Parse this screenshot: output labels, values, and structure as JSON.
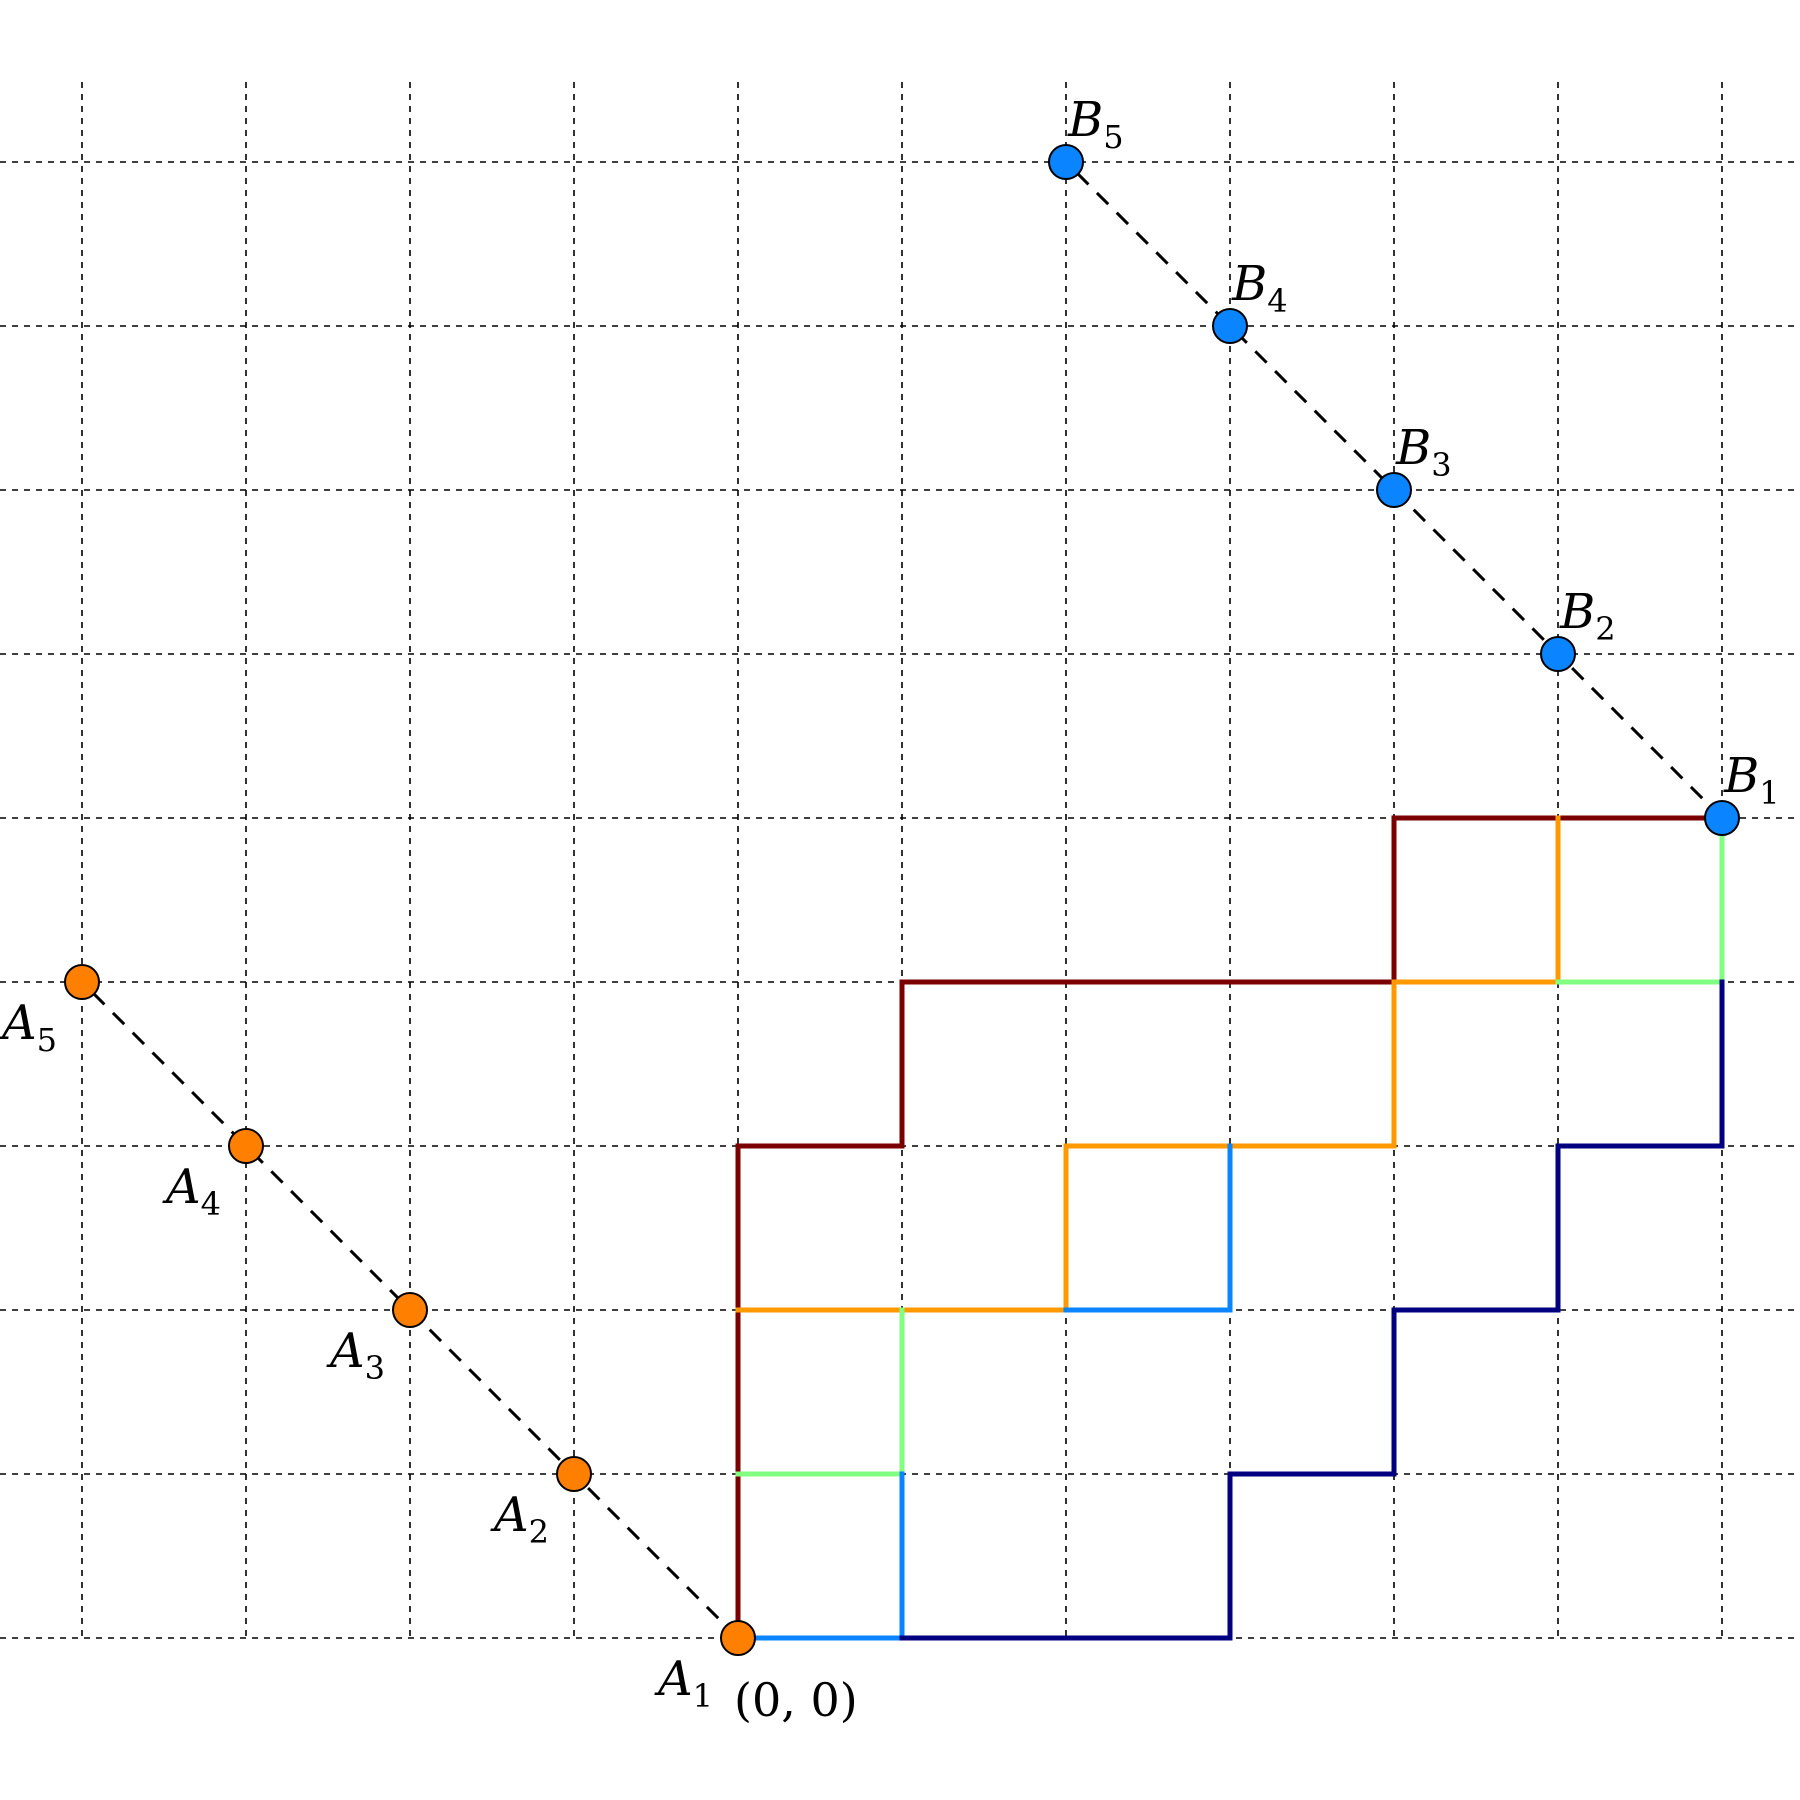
{
  "grid": {
    "x_min": -4,
    "x_max": 6,
    "y_min": 0,
    "y_max": 9,
    "line_color": "#000000"
  },
  "diagonals": [
    {
      "name": "a-diagonal",
      "from": [
        0,
        0
      ],
      "to": [
        -4,
        4
      ]
    },
    {
      "name": "b-diagonal",
      "from": [
        6,
        5
      ],
      "to": [
        2,
        9
      ]
    }
  ],
  "points_a": {
    "color": "#ff8000",
    "items": [
      {
        "letter": "A",
        "index": "1",
        "x": 0,
        "y": 0
      },
      {
        "letter": "A",
        "index": "2",
        "x": -1,
        "y": 1
      },
      {
        "letter": "A",
        "index": "3",
        "x": -2,
        "y": 2
      },
      {
        "letter": "A",
        "index": "4",
        "x": -3,
        "y": 3
      },
      {
        "letter": "A",
        "index": "5",
        "x": -4,
        "y": 4
      }
    ]
  },
  "points_b": {
    "color": "#0a84ff",
    "items": [
      {
        "letter": "B",
        "index": "1",
        "x": 6,
        "y": 5
      },
      {
        "letter": "B",
        "index": "2",
        "x": 5,
        "y": 6
      },
      {
        "letter": "B",
        "index": "3",
        "x": 4,
        "y": 7
      },
      {
        "letter": "B",
        "index": "4",
        "x": 3,
        "y": 8
      },
      {
        "letter": "B",
        "index": "5",
        "x": 2,
        "y": 9
      }
    ]
  },
  "origin_label": "(0, 0)",
  "paths": [
    {
      "color": "#7a0000",
      "points": [
        [
          0,
          0
        ],
        [
          0,
          3
        ],
        [
          1,
          3
        ],
        [
          1,
          4
        ],
        [
          4,
          4
        ],
        [
          4,
          5
        ],
        [
          6,
          5
        ]
      ]
    },
    {
      "color": "#ff9900",
      "points": [
        [
          0,
          2
        ],
        [
          2,
          2
        ],
        [
          2,
          3
        ],
        [
          4,
          3
        ],
        [
          4,
          4
        ],
        [
          5,
          4
        ],
        [
          5,
          5
        ]
      ]
    },
    {
      "color": "#80ff80",
      "points": [
        [
          0,
          1
        ],
        [
          1,
          1
        ],
        [
          1,
          2
        ]
      ]
    },
    {
      "color": "#80ff80",
      "points": [
        [
          5,
          4
        ],
        [
          6,
          4
        ],
        [
          6,
          5
        ]
      ]
    },
    {
      "color": "#0a84ff",
      "points": [
        [
          0,
          0
        ],
        [
          1,
          0
        ],
        [
          1,
          1
        ]
      ]
    },
    {
      "color": "#0a84ff",
      "points": [
        [
          2,
          2
        ],
        [
          3,
          2
        ],
        [
          3,
          3
        ]
      ]
    },
    {
      "color": "#000080",
      "points": [
        [
          1,
          0
        ],
        [
          3,
          0
        ],
        [
          3,
          1
        ],
        [
          4,
          1
        ],
        [
          4,
          2
        ],
        [
          5,
          2
        ],
        [
          5,
          3
        ],
        [
          6,
          3
        ],
        [
          6,
          4
        ]
      ]
    }
  ]
}
